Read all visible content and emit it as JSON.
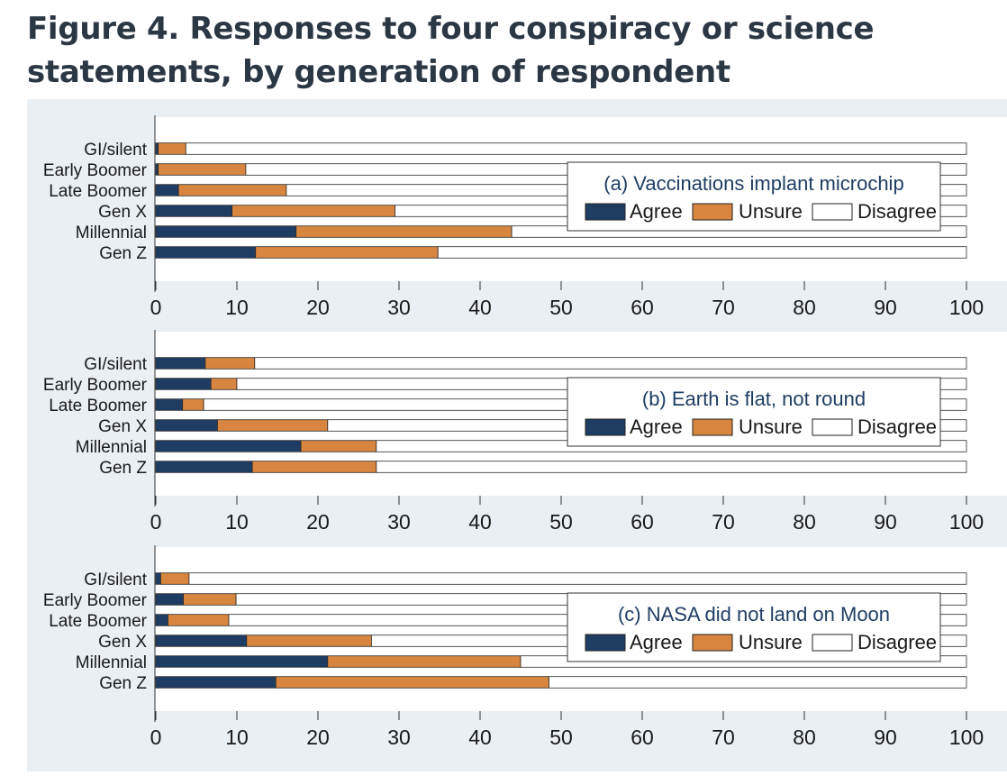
{
  "page": {
    "title": "Figure 4. Responses to four conspiracy or science statements, by generation of respondent"
  },
  "colors": {
    "agree": "#1f3d63",
    "unsure": "#d8853f",
    "disagree": "#ffffff",
    "panel_background": "#e9eff3",
    "plot_background": "#ffffff"
  },
  "chart_data": [
    {
      "type": "bar",
      "orientation": "horizontal",
      "stacked": true,
      "title": "(a) Vaccinations implant microchip",
      "categories": [
        "GI/silent",
        "Early Boomer",
        "Late Boomer",
        "Gen X",
        "Millennial",
        "Gen Z"
      ],
      "series": [
        {
          "name": "Agree",
          "values": [
            0.3,
            0.3,
            2.8,
            9.4,
            17.3,
            12.3
          ]
        },
        {
          "name": "Unsure",
          "values": [
            3.4,
            10.8,
            13.3,
            20.1,
            26.6,
            22.5
          ]
        },
        {
          "name": "Disagree",
          "values": [
            96.3,
            88.9,
            83.9,
            70.5,
            56.1,
            65.2
          ]
        }
      ],
      "xlim": [
        0,
        100
      ],
      "xticks": [
        "0",
        "10",
        "20",
        "30",
        "40",
        "50",
        "60",
        "70",
        "80",
        "90",
        "100"
      ],
      "legend": "upper-right"
    },
    {
      "type": "bar",
      "orientation": "horizontal",
      "stacked": true,
      "title": "(b) Earth is flat, not round",
      "categories": [
        "GI/silent",
        "Early Boomer",
        "Late Boomer",
        "Gen X",
        "Millennial",
        "Gen Z"
      ],
      "series": [
        {
          "name": "Agree",
          "values": [
            6.1,
            6.8,
            3.3,
            7.6,
            17.9,
            11.9
          ]
        },
        {
          "name": "Unsure",
          "values": [
            6.1,
            3.2,
            2.6,
            13.6,
            9.3,
            15.3
          ]
        },
        {
          "name": "Disagree",
          "values": [
            87.8,
            90.0,
            94.1,
            78.8,
            72.8,
            72.8
          ]
        }
      ],
      "xlim": [
        0,
        100
      ],
      "xticks": [
        "0",
        "10",
        "20",
        "30",
        "40",
        "50",
        "60",
        "70",
        "80",
        "90",
        "100"
      ],
      "legend": "right"
    },
    {
      "type": "bar",
      "orientation": "horizontal",
      "stacked": true,
      "title": "(c) NASA did not land on Moon",
      "categories": [
        "GI/silent",
        "Early Boomer",
        "Late Boomer",
        "Gen X",
        "Millennial",
        "Gen Z"
      ],
      "series": [
        {
          "name": "Agree",
          "values": [
            0.6,
            3.4,
            1.5,
            11.2,
            21.2,
            14.8
          ]
        },
        {
          "name": "Unsure",
          "values": [
            3.5,
            6.5,
            7.5,
            15.4,
            23.8,
            33.7
          ]
        },
        {
          "name": "Disagree",
          "values": [
            95.9,
            90.1,
            91.0,
            73.4,
            55.0,
            51.5
          ]
        }
      ],
      "xlim": [
        0,
        100
      ],
      "xticks": [
        "0",
        "10",
        "20",
        "30",
        "40",
        "50",
        "60",
        "70",
        "80",
        "90",
        "100"
      ],
      "legend": "right"
    }
  ]
}
